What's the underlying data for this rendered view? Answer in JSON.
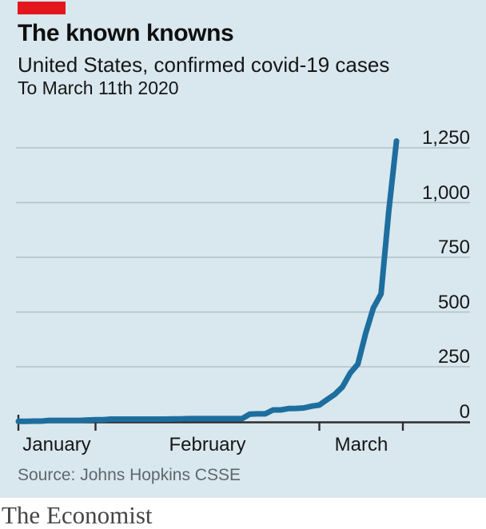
{
  "brand": {
    "logo_text": "The Economist",
    "accent_color": "#e4161d"
  },
  "header": {
    "title": "The known knowns",
    "subtitle": "United States, confirmed covid-19 cases",
    "period": "To March 11th 2020"
  },
  "source_note": "Source: Johns Hopkins CSSE",
  "chart_data": {
    "type": "line",
    "title": "The known knowns",
    "subtitle": "United States, confirmed covid-19 cases",
    "note": "To March 11th 2020",
    "x_start_date": "2020-01-22",
    "x_end_date": "2020-03-11",
    "frequency": "daily",
    "x_tick_labels": [
      "January",
      "February",
      "March"
    ],
    "y_ticks": [
      0,
      250,
      500,
      750,
      1000,
      1250
    ],
    "y_tick_labels": [
      "0",
      "250",
      "500",
      "750",
      "1,000",
      "1,250"
    ],
    "ylim": [
      0,
      1350
    ],
    "grid": "horizontal-only",
    "y_axis_side": "right",
    "legend": "none",
    "series": [
      {
        "name": "Confirmed covid-19 cases",
        "color": "#1d6e9e",
        "values": [
          1,
          1,
          2,
          2,
          5,
          5,
          5,
          5,
          5,
          7,
          8,
          8,
          11,
          11,
          11,
          11,
          11,
          11,
          11,
          11,
          12,
          12,
          13,
          13,
          13,
          13,
          13,
          13,
          13,
          13,
          34,
          35,
          35,
          53,
          53,
          59,
          60,
          62,
          70,
          75,
          100,
          124,
          158,
          221,
          262,
          402,
          518,
          583,
          959,
          1281
        ]
      }
    ],
    "source": "Source: Johns Hopkins CSSE"
  }
}
